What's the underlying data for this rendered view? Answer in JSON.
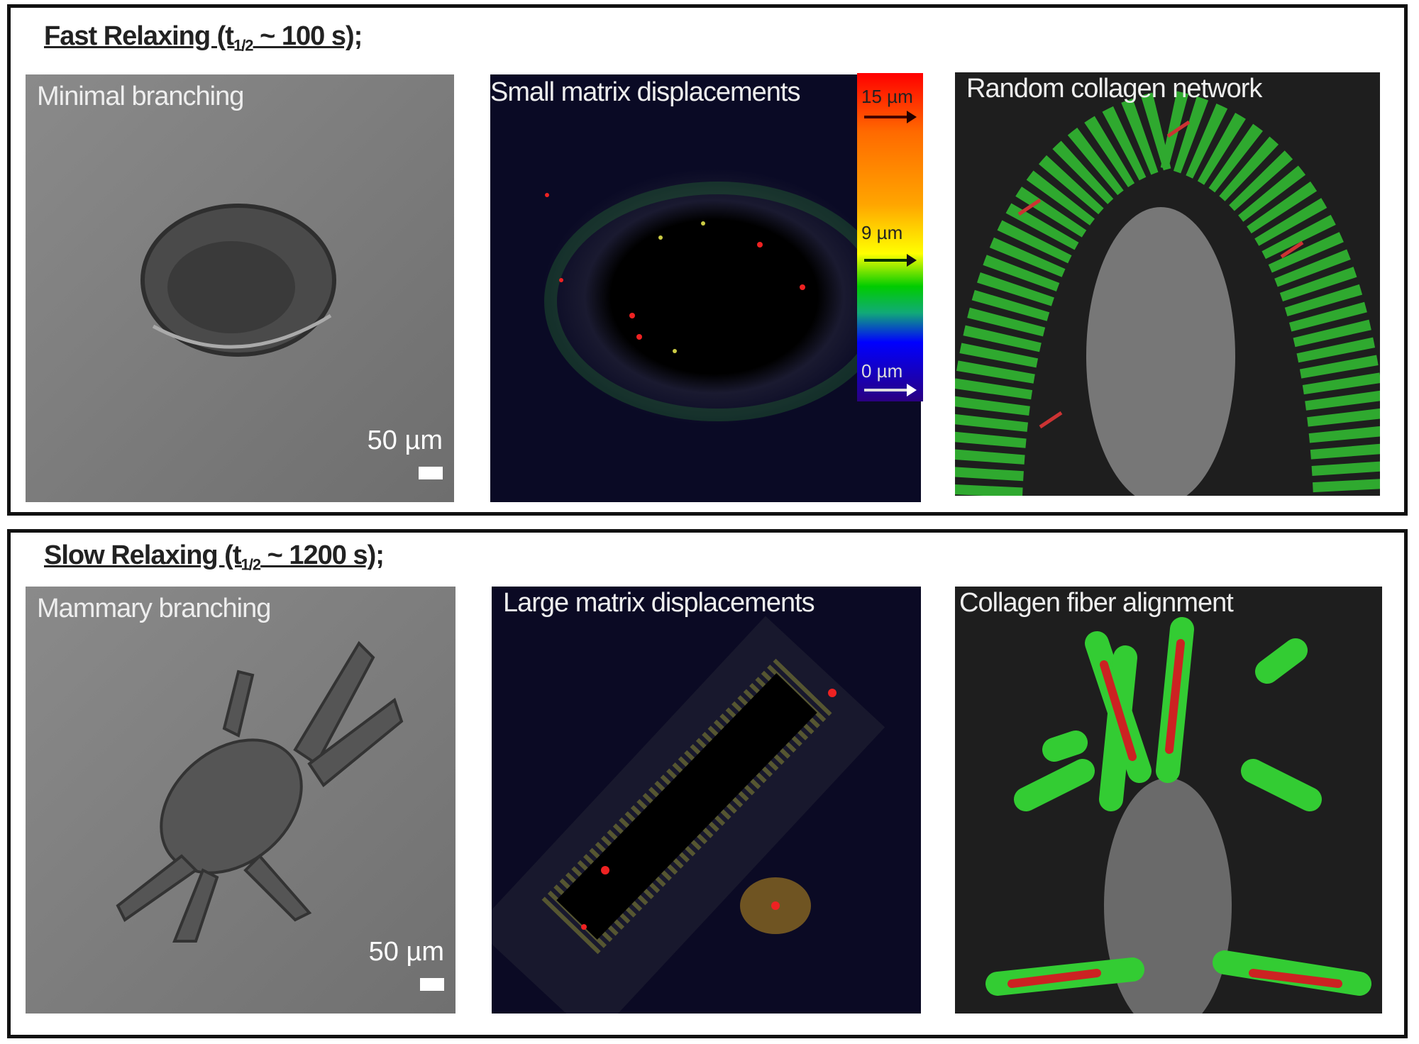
{
  "rows": [
    {
      "title_main": "Fast Relaxing (t",
      "title_sub": "1/2",
      "title_tail": " ~ 100 s);",
      "panels": [
        "Minimal branching",
        "Small matrix displacements",
        "Random collagen network"
      ],
      "scale_label": "50 µm"
    },
    {
      "title_main": "Slow Relaxing (t",
      "title_sub": "1/2",
      "title_tail": " ~ 1200 s);",
      "panels": [
        "Mammary branching",
        "Large matrix displacements",
        "Collagen fiber alignment"
      ],
      "scale_label": "50 µm"
    }
  ],
  "colorbar": {
    "labels": [
      "15 µm",
      "9 µm",
      "0 µm"
    ],
    "colors": [
      "#ff0000",
      "#ffa500",
      "#ffff00",
      "#00cc00",
      "#0000ff",
      "#2a0080"
    ]
  }
}
